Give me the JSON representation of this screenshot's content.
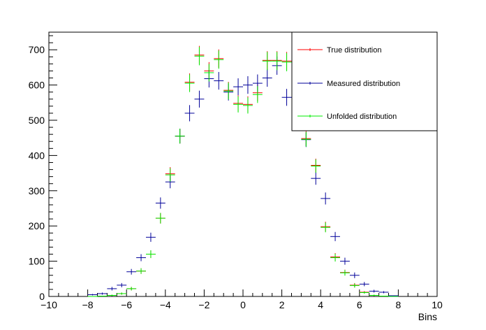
{
  "chart_data": {
    "type": "scatter",
    "title": "",
    "xlabel": "Bins",
    "ylabel": "",
    "xlim": [
      -10,
      10
    ],
    "ylim": [
      0,
      750
    ],
    "x_ticks": [
      -10,
      -8,
      -6,
      -4,
      -2,
      0,
      2,
      4,
      6,
      8,
      10
    ],
    "y_ticks": [
      0,
      100,
      200,
      300,
      400,
      500,
      600,
      700
    ],
    "bin_half_width": 0.25,
    "legend_position": "top-right",
    "series": [
      {
        "name": "True distribution",
        "color": "#ff0000",
        "x": [
          -7.75,
          -7.25,
          -6.75,
          -6.25,
          -5.75,
          -5.25,
          -4.75,
          -4.25,
          -3.75,
          -3.25,
          -2.75,
          -2.25,
          -1.75,
          -1.25,
          -0.75,
          -0.25,
          0.25,
          0.75,
          1.25,
          1.75,
          2.25,
          2.75,
          3.25,
          3.75,
          4.25,
          4.75,
          5.25,
          5.75,
          6.25,
          6.75,
          7.25,
          7.75
        ],
        "y": [
          0,
          1,
          3,
          8,
          22,
          72,
          120,
          222,
          348,
          455,
          608,
          685,
          640,
          675,
          585,
          548,
          545,
          578,
          670,
          670,
          668,
          560,
          448,
          372,
          198,
          112,
          68,
          32,
          12,
          3,
          1,
          0
        ],
        "err": [
          0,
          1,
          2,
          3,
          5,
          8,
          11,
          15,
          19,
          21,
          25,
          26,
          25,
          26,
          24,
          23,
          23,
          24,
          26,
          26,
          26,
          24,
          21,
          19,
          14,
          11,
          8,
          6,
          3,
          2,
          1,
          0
        ]
      },
      {
        "name": "Measured distribution",
        "color": "#000099",
        "x": [
          -7.75,
          -7.25,
          -6.75,
          -6.25,
          -5.75,
          -5.25,
          -4.75,
          -4.25,
          -3.75,
          -3.25,
          -2.75,
          -2.25,
          -1.75,
          -1.25,
          -0.75,
          -0.25,
          0.25,
          0.75,
          1.25,
          1.75,
          2.25,
          2.75,
          3.25,
          3.75,
          4.25,
          4.75,
          5.25,
          5.75,
          6.25,
          6.75,
          7.25,
          7.75
        ],
        "y": [
          5,
          8,
          22,
          32,
          70,
          110,
          168,
          265,
          325,
          455,
          520,
          560,
          618,
          612,
          580,
          595,
          600,
          605,
          620,
          655,
          565,
          520,
          445,
          335,
          278,
          170,
          100,
          60,
          35,
          15,
          12,
          2
        ],
        "err": [
          2,
          3,
          5,
          6,
          8,
          10,
          13,
          16,
          18,
          21,
          23,
          24,
          25,
          25,
          24,
          24,
          25,
          25,
          25,
          26,
          24,
          23,
          21,
          18,
          17,
          13,
          10,
          8,
          6,
          4,
          3,
          1
        ]
      },
      {
        "name": "Unfolded distribution",
        "color": "#00ee00",
        "x": [
          -7.75,
          -7.25,
          -6.75,
          -6.25,
          -5.75,
          -5.25,
          -4.75,
          -4.25,
          -3.75,
          -3.25,
          -2.75,
          -2.25,
          -1.75,
          -1.25,
          -0.75,
          -0.25,
          0.25,
          0.75,
          1.25,
          1.75,
          2.25,
          2.75,
          3.25,
          3.75,
          4.25,
          4.75,
          5.25,
          5.75,
          6.25,
          6.75,
          7.25,
          7.75
        ],
        "y": [
          0,
          1,
          3,
          8,
          22,
          72,
          120,
          222,
          345,
          455,
          605,
          682,
          635,
          672,
          583,
          545,
          542,
          573,
          668,
          668,
          665,
          558,
          446,
          370,
          196,
          110,
          67,
          31,
          11,
          3,
          1,
          0
        ],
        "err": [
          0,
          1,
          2,
          3,
          5,
          8,
          11,
          15,
          19,
          21,
          25,
          26,
          25,
          26,
          24,
          23,
          23,
          24,
          26,
          26,
          26,
          24,
          21,
          19,
          14,
          11,
          8,
          6,
          3,
          2,
          1,
          0
        ]
      }
    ]
  }
}
